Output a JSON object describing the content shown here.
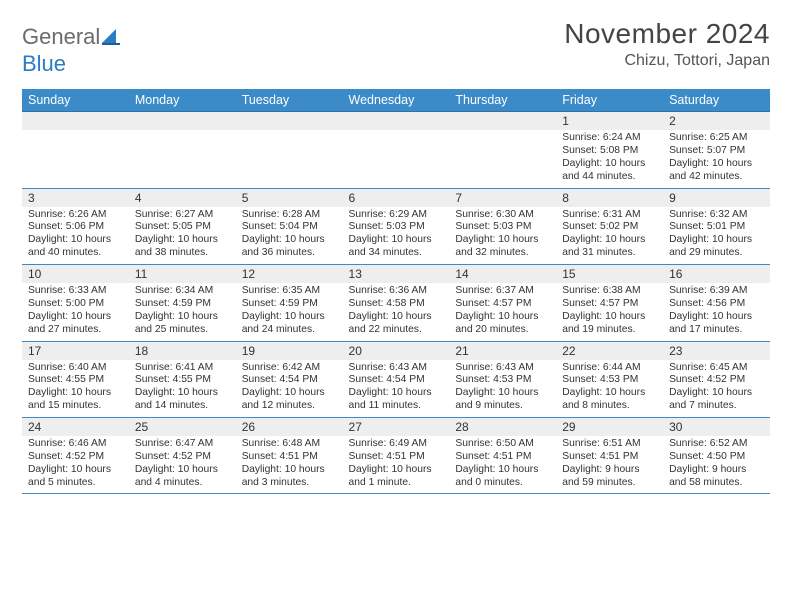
{
  "brand": {
    "name_grey": "General",
    "name_blue": "Blue"
  },
  "title": "November 2024",
  "location": "Chizu, Tottori, Japan",
  "colors": {
    "header_bg": "#3b8bc9",
    "header_text": "#ffffff",
    "row_divider": "#3b8bc9",
    "daynum_bg": "#eeeeee",
    "page_bg": "#ffffff",
    "body_text": "#333333",
    "title_text": "#444444",
    "logo_grey": "#6b6b6b",
    "logo_blue": "#2a7cc7"
  },
  "weekdays": [
    "Sunday",
    "Monday",
    "Tuesday",
    "Wednesday",
    "Thursday",
    "Friday",
    "Saturday"
  ],
  "weeks": [
    [
      null,
      null,
      null,
      null,
      null,
      {
        "n": "1",
        "sunrise": "Sunrise: 6:24 AM",
        "sunset": "Sunset: 5:08 PM",
        "daylight": "Daylight: 10 hours and 44 minutes."
      },
      {
        "n": "2",
        "sunrise": "Sunrise: 6:25 AM",
        "sunset": "Sunset: 5:07 PM",
        "daylight": "Daylight: 10 hours and 42 minutes."
      }
    ],
    [
      {
        "n": "3",
        "sunrise": "Sunrise: 6:26 AM",
        "sunset": "Sunset: 5:06 PM",
        "daylight": "Daylight: 10 hours and 40 minutes."
      },
      {
        "n": "4",
        "sunrise": "Sunrise: 6:27 AM",
        "sunset": "Sunset: 5:05 PM",
        "daylight": "Daylight: 10 hours and 38 minutes."
      },
      {
        "n": "5",
        "sunrise": "Sunrise: 6:28 AM",
        "sunset": "Sunset: 5:04 PM",
        "daylight": "Daylight: 10 hours and 36 minutes."
      },
      {
        "n": "6",
        "sunrise": "Sunrise: 6:29 AM",
        "sunset": "Sunset: 5:03 PM",
        "daylight": "Daylight: 10 hours and 34 minutes."
      },
      {
        "n": "7",
        "sunrise": "Sunrise: 6:30 AM",
        "sunset": "Sunset: 5:03 PM",
        "daylight": "Daylight: 10 hours and 32 minutes."
      },
      {
        "n": "8",
        "sunrise": "Sunrise: 6:31 AM",
        "sunset": "Sunset: 5:02 PM",
        "daylight": "Daylight: 10 hours and 31 minutes."
      },
      {
        "n": "9",
        "sunrise": "Sunrise: 6:32 AM",
        "sunset": "Sunset: 5:01 PM",
        "daylight": "Daylight: 10 hours and 29 minutes."
      }
    ],
    [
      {
        "n": "10",
        "sunrise": "Sunrise: 6:33 AM",
        "sunset": "Sunset: 5:00 PM",
        "daylight": "Daylight: 10 hours and 27 minutes."
      },
      {
        "n": "11",
        "sunrise": "Sunrise: 6:34 AM",
        "sunset": "Sunset: 4:59 PM",
        "daylight": "Daylight: 10 hours and 25 minutes."
      },
      {
        "n": "12",
        "sunrise": "Sunrise: 6:35 AM",
        "sunset": "Sunset: 4:59 PM",
        "daylight": "Daylight: 10 hours and 24 minutes."
      },
      {
        "n": "13",
        "sunrise": "Sunrise: 6:36 AM",
        "sunset": "Sunset: 4:58 PM",
        "daylight": "Daylight: 10 hours and 22 minutes."
      },
      {
        "n": "14",
        "sunrise": "Sunrise: 6:37 AM",
        "sunset": "Sunset: 4:57 PM",
        "daylight": "Daylight: 10 hours and 20 minutes."
      },
      {
        "n": "15",
        "sunrise": "Sunrise: 6:38 AM",
        "sunset": "Sunset: 4:57 PM",
        "daylight": "Daylight: 10 hours and 19 minutes."
      },
      {
        "n": "16",
        "sunrise": "Sunrise: 6:39 AM",
        "sunset": "Sunset: 4:56 PM",
        "daylight": "Daylight: 10 hours and 17 minutes."
      }
    ],
    [
      {
        "n": "17",
        "sunrise": "Sunrise: 6:40 AM",
        "sunset": "Sunset: 4:55 PM",
        "daylight": "Daylight: 10 hours and 15 minutes."
      },
      {
        "n": "18",
        "sunrise": "Sunrise: 6:41 AM",
        "sunset": "Sunset: 4:55 PM",
        "daylight": "Daylight: 10 hours and 14 minutes."
      },
      {
        "n": "19",
        "sunrise": "Sunrise: 6:42 AM",
        "sunset": "Sunset: 4:54 PM",
        "daylight": "Daylight: 10 hours and 12 minutes."
      },
      {
        "n": "20",
        "sunrise": "Sunrise: 6:43 AM",
        "sunset": "Sunset: 4:54 PM",
        "daylight": "Daylight: 10 hours and 11 minutes."
      },
      {
        "n": "21",
        "sunrise": "Sunrise: 6:43 AM",
        "sunset": "Sunset: 4:53 PM",
        "daylight": "Daylight: 10 hours and 9 minutes."
      },
      {
        "n": "22",
        "sunrise": "Sunrise: 6:44 AM",
        "sunset": "Sunset: 4:53 PM",
        "daylight": "Daylight: 10 hours and 8 minutes."
      },
      {
        "n": "23",
        "sunrise": "Sunrise: 6:45 AM",
        "sunset": "Sunset: 4:52 PM",
        "daylight": "Daylight: 10 hours and 7 minutes."
      }
    ],
    [
      {
        "n": "24",
        "sunrise": "Sunrise: 6:46 AM",
        "sunset": "Sunset: 4:52 PM",
        "daylight": "Daylight: 10 hours and 5 minutes."
      },
      {
        "n": "25",
        "sunrise": "Sunrise: 6:47 AM",
        "sunset": "Sunset: 4:52 PM",
        "daylight": "Daylight: 10 hours and 4 minutes."
      },
      {
        "n": "26",
        "sunrise": "Sunrise: 6:48 AM",
        "sunset": "Sunset: 4:51 PM",
        "daylight": "Daylight: 10 hours and 3 minutes."
      },
      {
        "n": "27",
        "sunrise": "Sunrise: 6:49 AM",
        "sunset": "Sunset: 4:51 PM",
        "daylight": "Daylight: 10 hours and 1 minute."
      },
      {
        "n": "28",
        "sunrise": "Sunrise: 6:50 AM",
        "sunset": "Sunset: 4:51 PM",
        "daylight": "Daylight: 10 hours and 0 minutes."
      },
      {
        "n": "29",
        "sunrise": "Sunrise: 6:51 AM",
        "sunset": "Sunset: 4:51 PM",
        "daylight": "Daylight: 9 hours and 59 minutes."
      },
      {
        "n": "30",
        "sunrise": "Sunrise: 6:52 AM",
        "sunset": "Sunset: 4:50 PM",
        "daylight": "Daylight: 9 hours and 58 minutes."
      }
    ]
  ]
}
